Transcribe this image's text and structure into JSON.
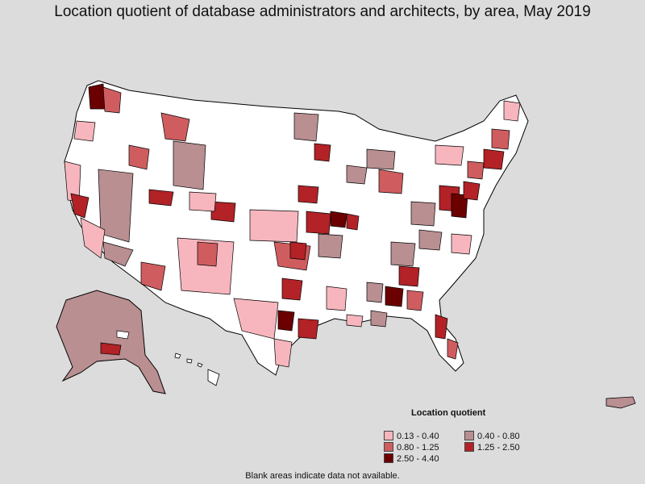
{
  "title": "Location quotient of database administrators and architects, by area, May 2019",
  "legend": {
    "title": "Location quotient",
    "items": [
      {
        "label": "0.13 - 0.40",
        "color": "#f7b6bd"
      },
      {
        "label": "0.40 - 0.80",
        "color": "#b98f91"
      },
      {
        "label": "0.80 - 1.25",
        "color": "#cf5d5f"
      },
      {
        "label": "1.25 - 2.50",
        "color": "#b22226"
      },
      {
        "label": "2.50 - 4.40",
        "color": "#6b0000"
      }
    ]
  },
  "footnote": "Blank areas indicate data not available.",
  "colors": {
    "background": "#dcdcdc",
    "blank_area": "#ffffff",
    "border": "#000000"
  }
}
